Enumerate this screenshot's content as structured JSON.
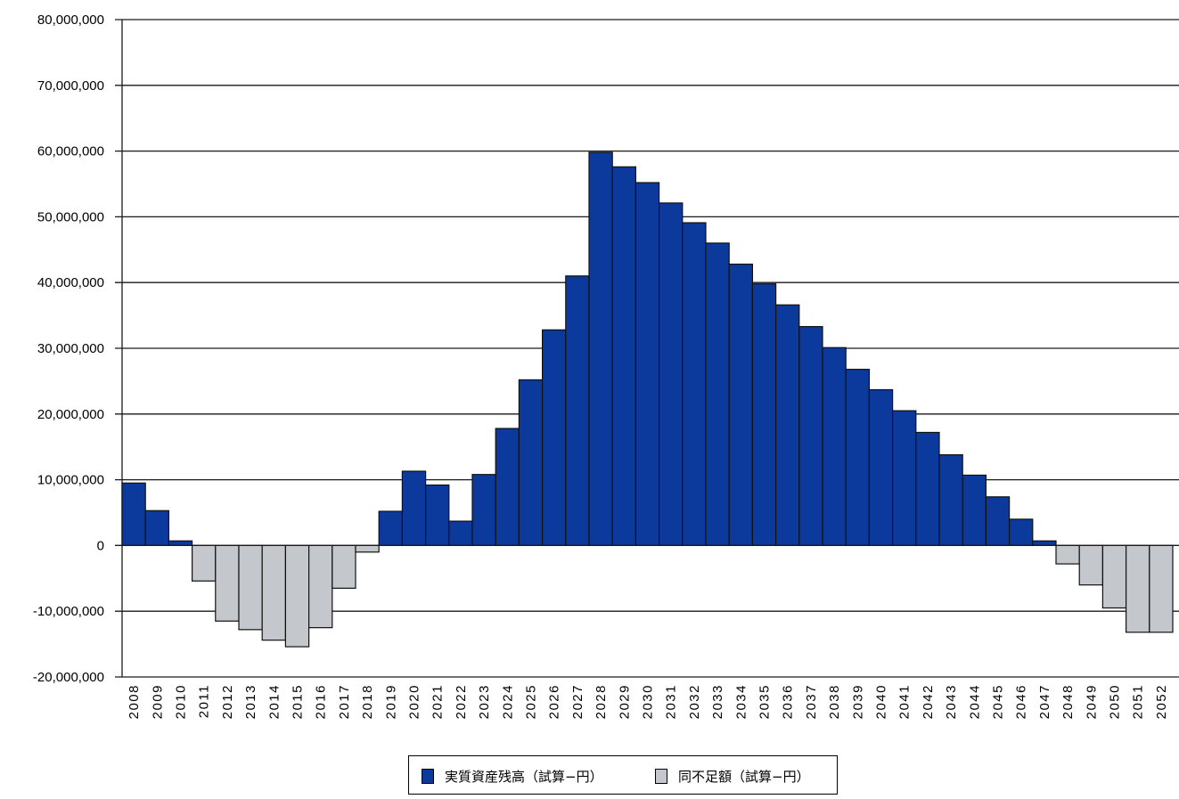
{
  "chart_data": {
    "type": "bar",
    "title": "",
    "xlabel": "",
    "ylabel": "",
    "ylim": [
      -20000000,
      80000000
    ],
    "y_ticks": [
      "80,000,000",
      "70,000,000",
      "60,000,000",
      "50,000,000",
      "40,000,000",
      "30,000,000",
      "20,000,000",
      "10,000,000",
      "0",
      "-10,000,000",
      "-20,000,000"
    ],
    "grid": "horizontal",
    "legend_position": "bottom-center",
    "categories": [
      "2008",
      "2009",
      "2010",
      "2011",
      "2012",
      "2013",
      "2014",
      "2015",
      "2016",
      "2017",
      "2018",
      "2019",
      "2020",
      "2021",
      "2022",
      "2023",
      "2024",
      "2025",
      "2026",
      "2027",
      "2028",
      "2029",
      "2030",
      "2031",
      "2032",
      "2033",
      "2034",
      "2035",
      "2036",
      "2037",
      "2038",
      "2039",
      "2040",
      "2041",
      "2042",
      "2043",
      "2044",
      "2045",
      "2046",
      "2047",
      "2048",
      "2049",
      "2050",
      "2051",
      "2052"
    ],
    "series": [
      {
        "name": "実質資産残高（試算−円）",
        "color": "#0c3a9c",
        "values": [
          9500000,
          5300000,
          700000,
          null,
          null,
          null,
          null,
          null,
          null,
          null,
          null,
          5200000,
          11300000,
          9200000,
          3700000,
          10800000,
          17800000,
          25200000,
          32800000,
          41000000,
          59800000,
          57600000,
          55200000,
          52100000,
          49100000,
          46000000,
          42800000,
          39800000,
          36600000,
          33300000,
          30100000,
          26800000,
          23700000,
          20500000,
          17200000,
          13800000,
          10700000,
          7400000,
          4000000,
          700000,
          null,
          null,
          null,
          null,
          null
        ]
      },
      {
        "name": "同不足額（試算−円）",
        "color": "#c4c7cc",
        "values": [
          null,
          null,
          null,
          -5400000,
          -11500000,
          -12800000,
          -14400000,
          -15400000,
          -12500000,
          -6500000,
          -1000000,
          null,
          null,
          null,
          null,
          null,
          null,
          null,
          null,
          null,
          null,
          null,
          null,
          null,
          null,
          null,
          null,
          null,
          null,
          null,
          null,
          null,
          null,
          null,
          null,
          null,
          null,
          null,
          null,
          null,
          -2800000,
          -6000000,
          -9500000,
          -13200000,
          -13200000
        ]
      }
    ]
  }
}
